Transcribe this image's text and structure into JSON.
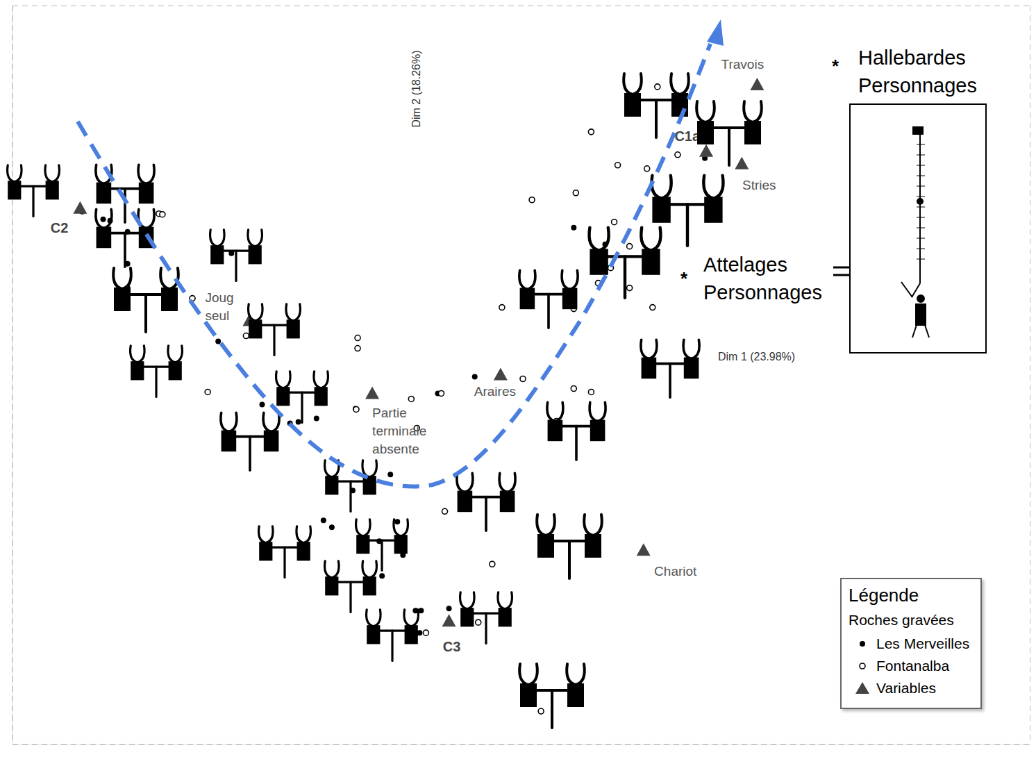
{
  "chart_data": {
    "type": "scatter",
    "x_label": "Dim 1 (23.98%)",
    "y_label": "Dim 2 (18.26%)",
    "xlim": [
      -6,
      8.6
    ],
    "ylim": [
      -5.4,
      5.25
    ],
    "xticks": [
      0
    ],
    "yticks": [
      0
    ],
    "grid": true,
    "tick_labels": false,
    "legend": "lower right",
    "legend_title": "Légende",
    "legend_subtitle": "Roches gravées",
    "series": [
      {
        "name": "Les Merveilles",
        "color": "#000000",
        "marker": "circle",
        "x": [
          -5.0,
          -4.72,
          -4.7,
          -4.6,
          -4.35,
          -4.35,
          -4.35,
          -2.86,
          -3.05,
          -2.42,
          -2.02,
          -1.9,
          -1.64,
          -1.08,
          -0.58,
          -1.12,
          -1.54,
          -1.42,
          -0.48,
          -0.74,
          -0.38,
          -0.4,
          -0.7,
          -0.22,
          -0.14,
          -0.16,
          0.26,
          0.1,
          0.63,
          2.05,
          3.93,
          2.5
        ],
        "y": [
          2.28,
          2.45,
          2.17,
          2.15,
          1.99,
          1.53,
          1.18,
          1.68,
          0.41,
          -0.5,
          -0.77,
          -0.75,
          -0.7,
          -0.56,
          -1.51,
          -1.74,
          -2.17,
          -2.27,
          -2.19,
          -2.47,
          -2.49,
          -2.67,
          -2.97,
          -3.47,
          -3.47,
          -3.79,
          -3.44,
          -0.34,
          -0.1,
          2.05,
          3.05,
          1.81
        ]
      },
      {
        "name": "Fontanalba",
        "color": "#000000",
        "marker": "open_circle",
        "x": [
          -3.9,
          -3.85,
          -3.42,
          -2.65,
          -1.05,
          -1.05,
          -3.2,
          -1.07,
          -0.28,
          -0.2,
          0.15,
          1.32,
          0.2,
          -0.07,
          0.68,
          0.88,
          1.8,
          2.05,
          2.3,
          2.3,
          2.68,
          2.08,
          1.45,
          3.1,
          3.54,
          3.25,
          2.63,
          2.85,
          2.58,
          2.4,
          2.85,
          3.13,
          3.18,
          2.05,
          1.02,
          1.58
        ],
        "y": [
          2.25,
          2.24,
          1.03,
          0.49,
          0.46,
          0.31,
          -0.32,
          -0.57,
          -0.42,
          -0.84,
          -0.34,
          -0.13,
          -2.04,
          -3.79,
          -3.64,
          -2.8,
          -0.74,
          -0.27,
          -0.32,
          3.43,
          2.95,
          2.55,
          2.45,
          2.9,
          3.1,
          4.08,
          2.13,
          1.78,
          1.47,
          1.25,
          1.18,
          1.43,
          0.9,
          0.88,
          0.9,
          -4.92
        ]
      },
      {
        "name": "Variables",
        "color": "#444444",
        "marker": "triangle",
        "x": [
          -5.03,
          -2.6,
          -0.84,
          1.0,
          3.95,
          4.68,
          4.46,
          3.05,
          0.26
        ],
        "y": [
          2.33,
          0.71,
          -0.34,
          -0.07,
          3.15,
          4.11,
          2.97,
          -2.6,
          -3.62
        ],
        "labels": [
          "C2",
          "Joug seul",
          "Partie terminale absente",
          "Araires",
          "C1a",
          "Travois",
          "Stries",
          "Chariot",
          "C3"
        ]
      }
    ],
    "annotations": [
      {
        "symbol": "*",
        "text": "Hallebardes Personnages"
      },
      {
        "symbol": "*",
        "text": "Attelages Personnages"
      }
    ]
  }
}
